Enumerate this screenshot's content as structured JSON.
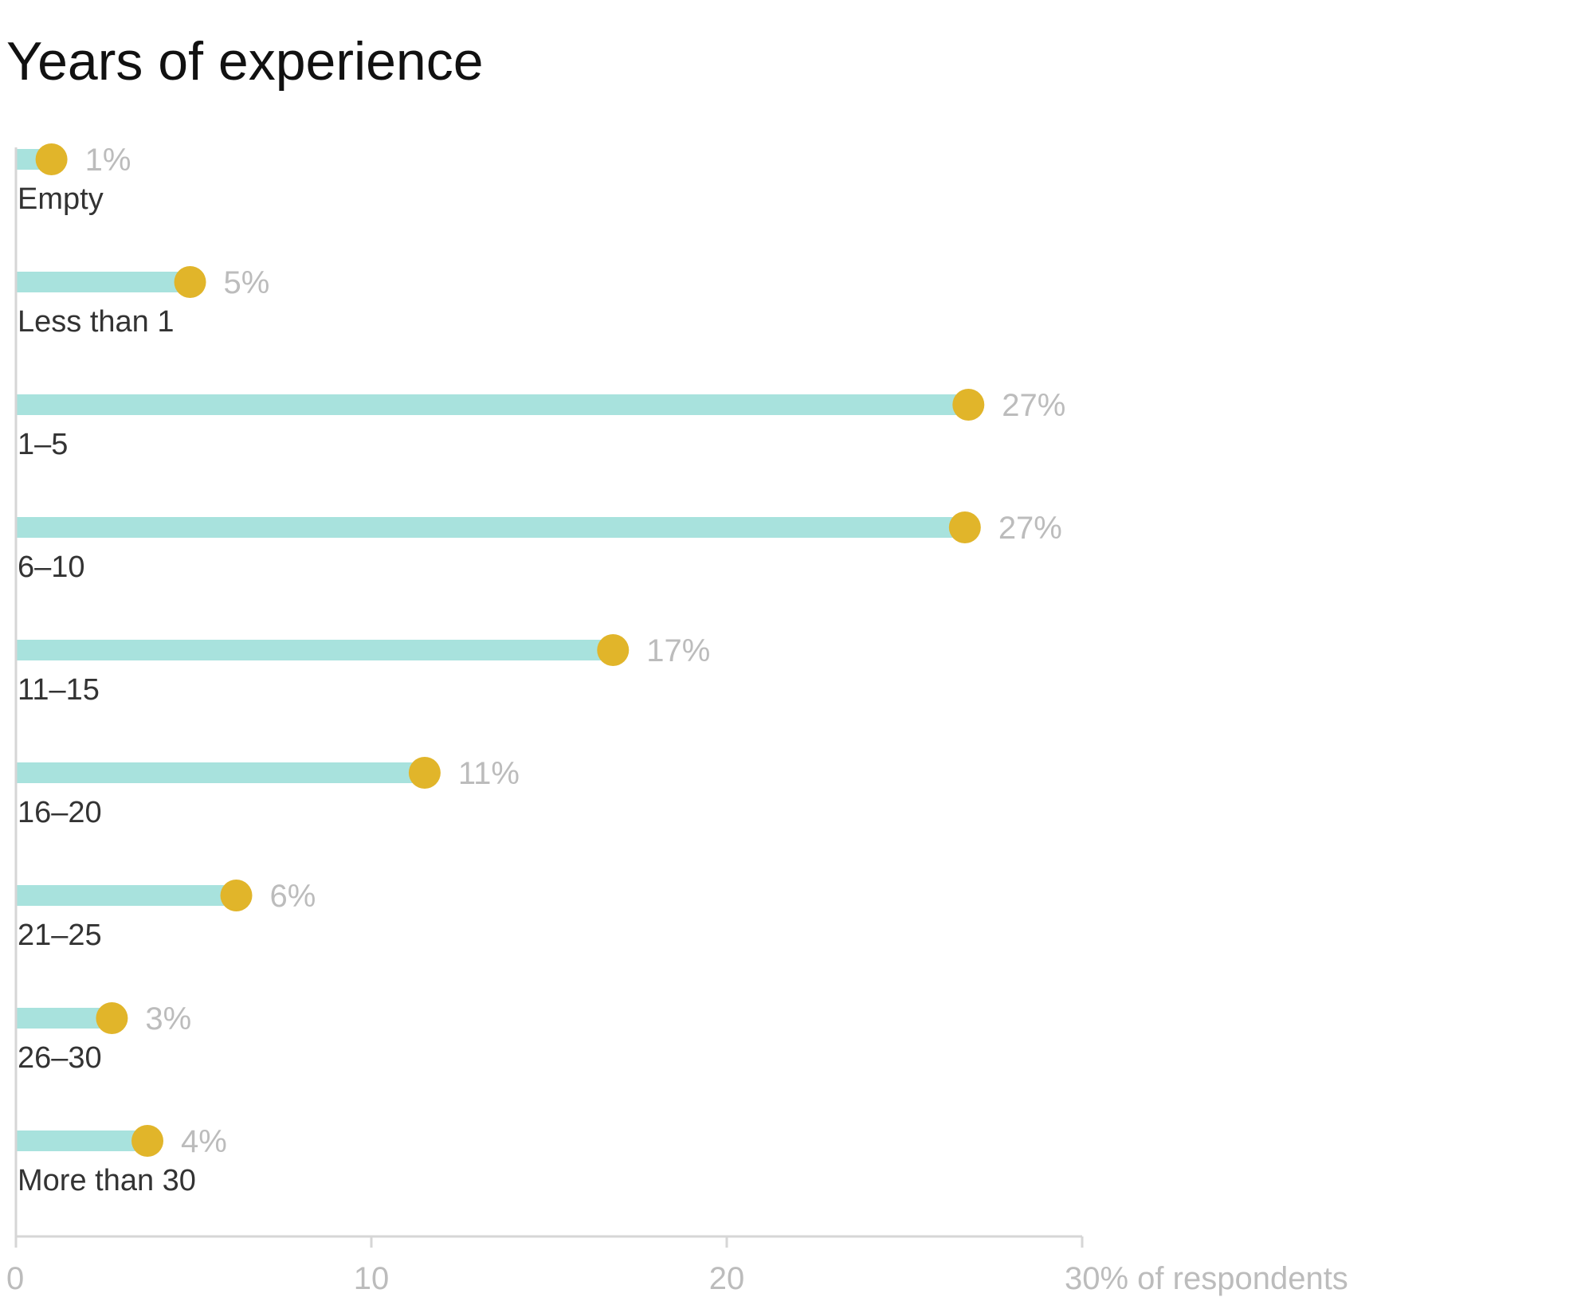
{
  "colors": {
    "bar": "#a8e2dd",
    "dot": "#e1b52a",
    "axis": "#d6d6d6",
    "value_text": "#bcbcbc"
  },
  "chart_data": {
    "type": "bar",
    "orientation": "horizontal",
    "title": "Years of experience",
    "categories": [
      "Empty",
      "Less than 1",
      "1–5",
      "6–10",
      "11–15",
      "16–20",
      "21–25",
      "26–30",
      "More than 30"
    ],
    "values": [
      1,
      5,
      27,
      27,
      17,
      11,
      6,
      3,
      4
    ],
    "value_labels": [
      "1%",
      "5%",
      "27%",
      "27%",
      "17%",
      "11%",
      "6%",
      "3%",
      "4%"
    ],
    "plot_values": [
      1.0,
      4.9,
      26.8,
      26.7,
      16.8,
      11.5,
      6.2,
      2.7,
      3.7
    ],
    "xlim": [
      0,
      30
    ],
    "x_ticks": [
      0,
      10,
      20,
      30
    ],
    "x_tick_labels": [
      "0",
      "10",
      "20",
      "30% of respondents"
    ],
    "xlabel": "",
    "ylabel": "",
    "grid": false,
    "legend": "none"
  }
}
